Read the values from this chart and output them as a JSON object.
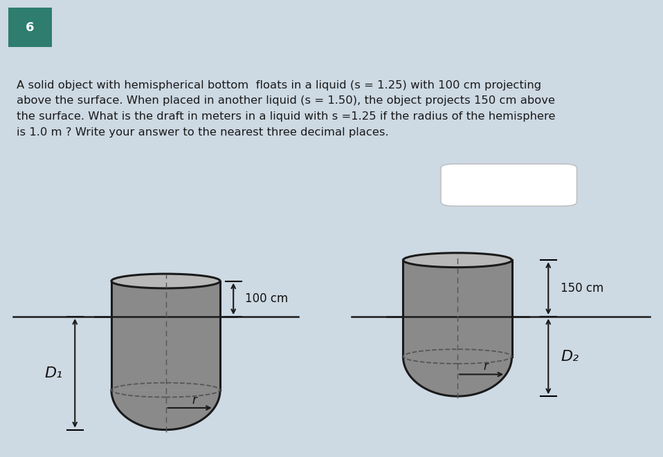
{
  "background_color": "#cdd9e3",
  "text_panel_color": "#d4e0ea",
  "draw_panel_color": "#f0f4f7",
  "number_box_color": "#2e7d6e",
  "number_box_text": "6",
  "question_text": "A solid object with hemispherical bottom  floats in a liquid (s = 1.25) with 100 cm projecting\nabove the surface. When placed in another liquid (s = 1.50), the object projects 150 cm above\nthe surface. What is the draft in meters in a liquid with s =1.25 if the radius of the hemisphere\nis 1.0 m ? Write your answer to the nearest three decimal places.",
  "cylinder_fill": "#8a8a8a",
  "cylinder_top_fill": "#b8b8b8",
  "cylinder_stroke": "#1a1a1a",
  "liquid_line_color": "#1a1a1a",
  "arrow_color": "#1a1a1a",
  "label_100cm": "100 cm",
  "label_150cm": "150 cm",
  "label_D1": "D₁",
  "label_D2": "D₂",
  "label_r": "r",
  "dashed_line_color": "#555555"
}
